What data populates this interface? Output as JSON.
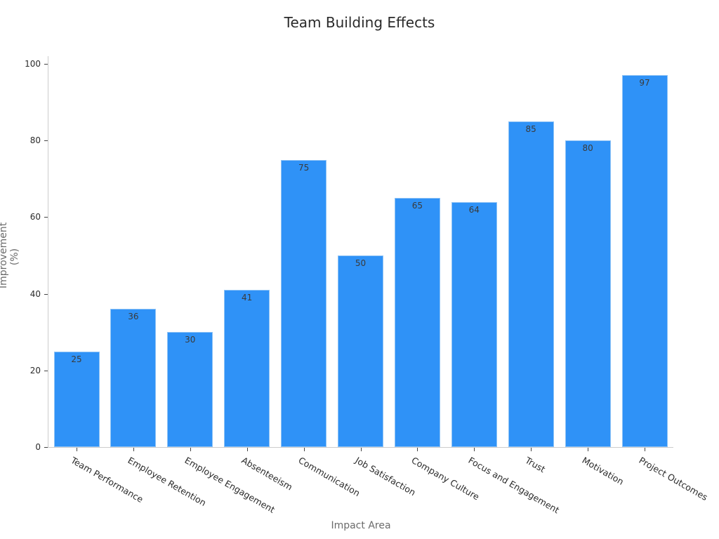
{
  "chart_data": {
    "type": "bar",
    "title": "Team Building Effects",
    "xlabel": "Impact Area",
    "ylabel": "Improvement (%)",
    "ylim": [
      0,
      100
    ],
    "yticks": [
      0,
      20,
      40,
      60,
      80,
      100
    ],
    "grid": false,
    "legend": null,
    "bar_color": "#2f92f7",
    "categories": [
      "Team Performance",
      "Employee Retention",
      "Employee Engagement",
      "Absenteeism",
      "Communication",
      "Job Satisfaction",
      "Company Culture",
      "Focus and Engagement",
      "Trust",
      "Motivation",
      "Project Outcomes"
    ],
    "values": [
      25,
      36,
      30,
      41,
      75,
      50,
      65,
      64,
      85,
      80,
      97
    ]
  }
}
